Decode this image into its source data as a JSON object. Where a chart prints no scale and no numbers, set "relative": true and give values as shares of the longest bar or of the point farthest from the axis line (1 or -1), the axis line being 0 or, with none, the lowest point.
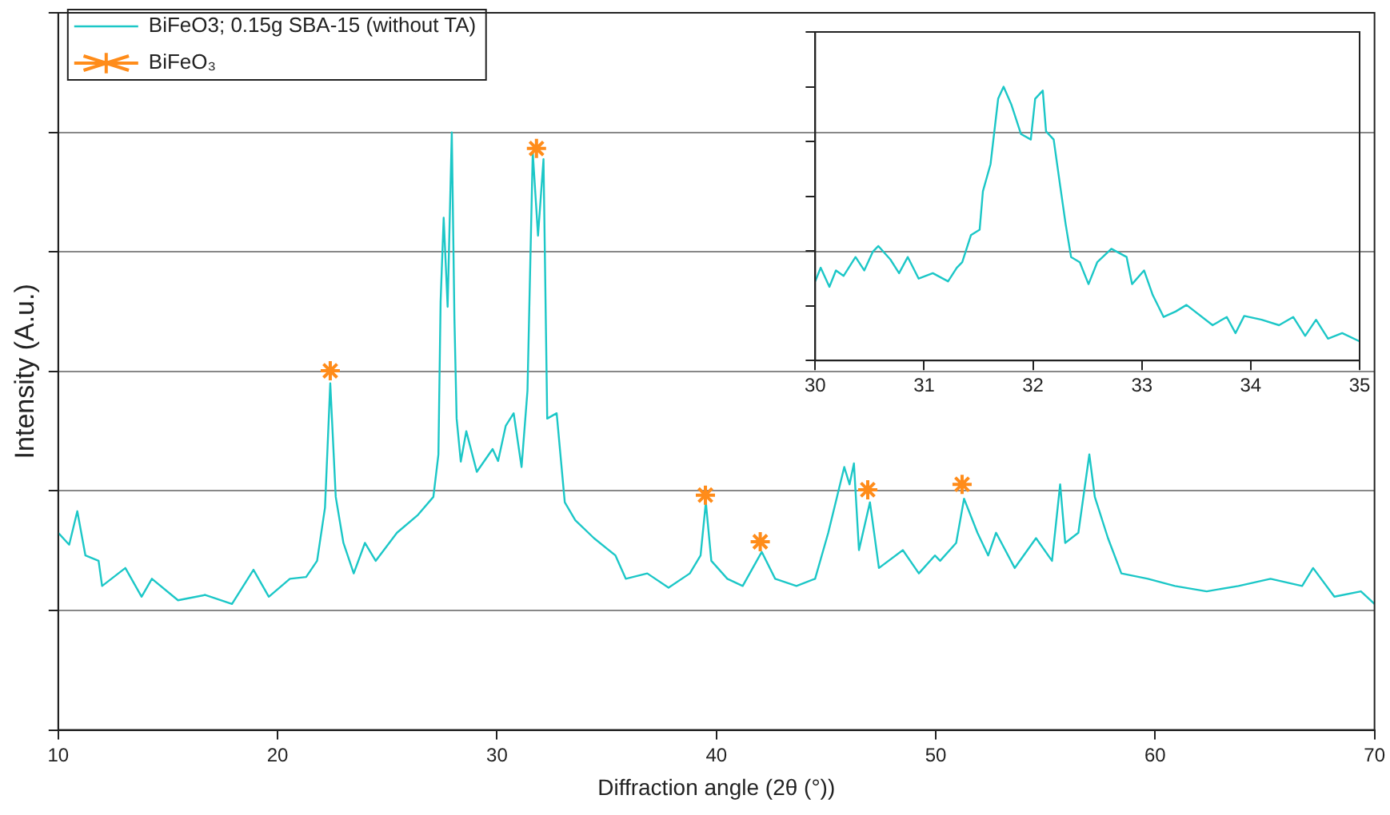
{
  "chart_data": [
    {
      "type": "line",
      "xlabel": "Diffraction angle (2θ (°))",
      "ylabel": "Intensity (A.u.)",
      "relative": true,
      "xlim": [
        10,
        70
      ],
      "xticks": [
        10,
        20,
        30,
        40,
        50,
        60,
        70
      ],
      "tick_labels": "x",
      "grid": "y",
      "legend": "top left",
      "series": [
        {
          "name": "BiFeO3; 0.15g SBA-15 (without TA)",
          "marker": "none",
          "color": "#1cc7c7",
          "x": [
            10,
            10.5,
            10.87,
            11.24,
            11.84,
            12.0,
            13.06,
            13.8,
            14.27,
            15.46,
            16.7,
            17.92,
            18.9,
            19.6,
            20.56,
            21.3,
            21.8,
            22.16,
            22.4,
            22.65,
            23.0,
            23.47,
            23.98,
            24.47,
            25.44,
            26.4,
            27.1,
            27.33,
            27.43,
            27.57,
            27.75,
            27.94,
            28.06,
            28.16,
            28.35,
            28.6,
            29.08,
            29.8,
            30.05,
            30.4,
            30.76,
            31.12,
            31.39,
            31.63,
            31.87,
            32.12,
            32.29,
            32.72,
            33.09,
            33.57,
            34.42,
            35.4,
            35.87,
            36.85,
            37.82,
            38.79,
            39.28,
            39.52,
            39.77,
            40.5,
            41.2,
            42.07,
            42.68,
            43.65,
            44.5,
            45.1,
            45.83,
            46.07,
            46.27,
            46.5,
            47.0,
            47.41,
            48.5,
            49.23,
            49.96,
            50.2,
            50.93,
            51.29,
            51.9,
            52.39,
            52.75,
            53.6,
            54.57,
            55.3,
            55.67,
            55.9,
            56.5,
            57.0,
            57.25,
            57.85,
            58.46,
            59.67,
            60.9,
            62.35,
            63.8,
            65.26,
            66.7,
            67.2,
            68.17,
            69.38,
            70
          ],
          "values": [
            0.33,
            0.31,
            0.366,
            0.292,
            0.283,
            0.241,
            0.271,
            0.223,
            0.253,
            0.217,
            0.226,
            0.211,
            0.268,
            0.223,
            0.253,
            0.256,
            0.283,
            0.372,
            0.58,
            0.39,
            0.313,
            0.262,
            0.313,
            0.283,
            0.33,
            0.36,
            0.39,
            0.461,
            0.717,
            0.857,
            0.708,
            1.0,
            0.688,
            0.521,
            0.449,
            0.5,
            0.432,
            0.47,
            0.45,
            0.509,
            0.53,
            0.44,
            0.568,
            0.967,
            0.827,
            0.955,
            0.521,
            0.53,
            0.381,
            0.351,
            0.321,
            0.292,
            0.253,
            0.262,
            0.238,
            0.262,
            0.292,
            0.381,
            0.283,
            0.253,
            0.241,
            0.298,
            0.253,
            0.241,
            0.253,
            0.33,
            0.44,
            0.411,
            0.446,
            0.301,
            0.381,
            0.271,
            0.301,
            0.262,
            0.292,
            0.283,
            0.313,
            0.387,
            0.33,
            0.292,
            0.33,
            0.271,
            0.321,
            0.283,
            0.411,
            0.313,
            0.33,
            0.461,
            0.39,
            0.321,
            0.262,
            0.253,
            0.241,
            0.232,
            0.241,
            0.253,
            0.241,
            0.271,
            0.223,
            0.232,
            0.211
          ]
        },
        {
          "name": "BiFeO₃",
          "type": "scatter",
          "marker": "cross",
          "color": "#ff8c1a",
          "x": [
            22.4,
            31.8,
            39.5,
            42.0,
            46.9,
            51.2
          ],
          "values": [
            0.601,
            0.973,
            0.393,
            0.315,
            0.402,
            0.411
          ]
        }
      ]
    },
    {
      "type": "line",
      "relative": true,
      "xlim": [
        30,
        35
      ],
      "xticks": [
        30,
        31,
        32,
        33,
        34,
        35
      ],
      "tick_labels": "x",
      "series": [
        {
          "marker": "none",
          "color": "#1cc7c7",
          "x": [
            30.0,
            30.05,
            30.13,
            30.19,
            30.26,
            30.37,
            30.45,
            30.53,
            30.58,
            30.69,
            30.77,
            30.85,
            30.95,
            31.08,
            31.22,
            31.3,
            31.35,
            31.43,
            31.51,
            31.54,
            31.61,
            31.68,
            31.73,
            31.8,
            31.89,
            31.98,
            32.02,
            32.09,
            32.12,
            32.19,
            32.25,
            32.3,
            32.35,
            32.43,
            32.51,
            32.59,
            32.72,
            32.86,
            32.91,
            33.02,
            33.1,
            33.2,
            33.31,
            33.41,
            33.65,
            33.78,
            33.86,
            33.94,
            34.1,
            34.26,
            34.39,
            34.5,
            34.6,
            34.71,
            34.84,
            35.0
          ],
          "values": [
            0.289,
            0.339,
            0.269,
            0.329,
            0.309,
            0.378,
            0.329,
            0.398,
            0.418,
            0.369,
            0.319,
            0.378,
            0.299,
            0.319,
            0.289,
            0.339,
            0.359,
            0.458,
            0.478,
            0.618,
            0.717,
            0.956,
            1.0,
            0.936,
            0.827,
            0.807,
            0.956,
            0.986,
            0.837,
            0.807,
            0.637,
            0.498,
            0.378,
            0.359,
            0.279,
            0.359,
            0.408,
            0.378,
            0.279,
            0.329,
            0.239,
            0.159,
            0.179,
            0.203,
            0.129,
            0.159,
            0.1,
            0.163,
            0.149,
            0.129,
            0.159,
            0.09,
            0.149,
            0.08,
            0.1,
            0.07
          ]
        }
      ]
    }
  ]
}
